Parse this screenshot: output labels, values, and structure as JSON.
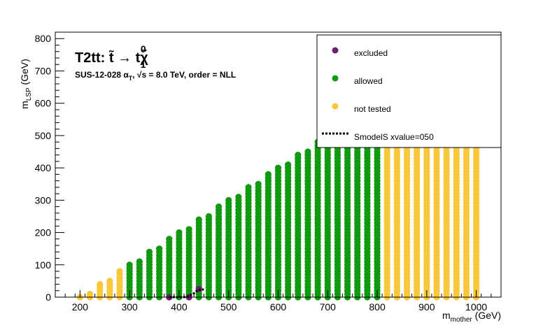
{
  "chart_data": {
    "type": "scatter",
    "title": "T2tt: t̃ → tχ̃",
    "title_superscript": "0",
    "title_subscript": "1",
    "subtitle": "SUS-12-028   α",
    "subtitle_sub": "T",
    "subtitle_rest": ", √s =  8.0 TeV, order =  NLL",
    "xlabel": "m",
    "xlabel_sub": "mother",
    "xlabel_unit": " (GeV)",
    "ylabel": "m",
    "ylabel_sub": "LSP",
    "ylabel_unit": " (GeV)",
    "xlim": [
      150,
      1050
    ],
    "ylim": [
      0,
      820
    ],
    "x_ticks": [
      200,
      300,
      400,
      500,
      600,
      700,
      800,
      900,
      1000
    ],
    "y_ticks": [
      0,
      100,
      200,
      300,
      400,
      500,
      600,
      700,
      800
    ],
    "grid": false,
    "legend_position": "top-right",
    "colors": {
      "excluded": "#6b1f6f",
      "allowed": "#119a11",
      "not_tested": "#f8c83a",
      "contour": "#000000"
    },
    "series": [
      {
        "name": "excluded",
        "color": "#6b1f6f",
        "columns": [
          {
            "x": 380,
            "y": [
              0
            ]
          },
          {
            "x": 420,
            "y": [
              0
            ]
          },
          {
            "x": 440,
            "y": [
              25
            ]
          }
        ]
      },
      {
        "name": "allowed",
        "color": "#119a11",
        "columns": [
          {
            "x": 300,
            "y_min": 0,
            "y_max": 100
          },
          {
            "x": 320,
            "y_min": 0,
            "y_max": 115
          },
          {
            "x": 340,
            "y_min": 0,
            "y_max": 140
          },
          {
            "x": 360,
            "y_min": 0,
            "y_max": 155
          },
          {
            "x": 380,
            "y_min": 0,
            "y_max": 180
          },
          {
            "x": 400,
            "y_min": 0,
            "y_max": 200
          },
          {
            "x": 420,
            "y_min": 0,
            "y_max": 215
          },
          {
            "x": 440,
            "y_min": 0,
            "y_max": 240
          },
          {
            "x": 460,
            "y_min": 0,
            "y_max": 255
          },
          {
            "x": 480,
            "y_min": 0,
            "y_max": 280
          },
          {
            "x": 500,
            "y_min": 0,
            "y_max": 300
          },
          {
            "x": 520,
            "y_min": 0,
            "y_max": 315
          },
          {
            "x": 540,
            "y_min": 0,
            "y_max": 340
          },
          {
            "x": 560,
            "y_min": 0,
            "y_max": 355
          },
          {
            "x": 580,
            "y_min": 0,
            "y_max": 380
          },
          {
            "x": 600,
            "y_min": 0,
            "y_max": 400
          },
          {
            "x": 620,
            "y_min": 0,
            "y_max": 415
          },
          {
            "x": 640,
            "y_min": 0,
            "y_max": 440
          },
          {
            "x": 660,
            "y_min": 0,
            "y_max": 455
          },
          {
            "x": 680,
            "y_min": 0,
            "y_max": 480
          },
          {
            "x": 700,
            "y_min": 0,
            "y_max": 500
          },
          {
            "x": 720,
            "y_min": 0,
            "y_max": 500
          },
          {
            "x": 740,
            "y_min": 0,
            "y_max": 500
          },
          {
            "x": 760,
            "y_min": 0,
            "y_max": 500
          },
          {
            "x": 780,
            "y_min": 0,
            "y_max": 500
          },
          {
            "x": 800,
            "y_min": 0,
            "y_max": 500
          }
        ]
      },
      {
        "name": "not tested",
        "color": "#f8c83a",
        "columns": [
          {
            "x": 200,
            "y_min": 0,
            "y_max": 0
          },
          {
            "x": 220,
            "y_min": 0,
            "y_max": 10
          },
          {
            "x": 240,
            "y_min": 0,
            "y_max": 40
          },
          {
            "x": 260,
            "y_min": 0,
            "y_max": 50
          },
          {
            "x": 280,
            "y_min": 0,
            "y_max": 80
          },
          {
            "x": 820,
            "y_min": 0,
            "y_max": 500
          },
          {
            "x": 840,
            "y_min": 0,
            "y_max": 500
          },
          {
            "x": 860,
            "y_min": 0,
            "y_max": 500
          },
          {
            "x": 880,
            "y_min": 0,
            "y_max": 500
          },
          {
            "x": 900,
            "y_min": 0,
            "y_max": 500
          },
          {
            "x": 920,
            "y_min": 0,
            "y_max": 500
          },
          {
            "x": 940,
            "y_min": 0,
            "y_max": 500
          },
          {
            "x": 960,
            "y_min": 0,
            "y_max": 500
          },
          {
            "x": 980,
            "y_min": 0,
            "y_max": 500
          },
          {
            "x": 1000,
            "y_min": 0,
            "y_max": 500
          }
        ]
      }
    ],
    "contour": {
      "name": "SmodelS xvalue=050",
      "points": [
        [
          380,
          0
        ],
        [
          400,
          0
        ],
        [
          410,
          0
        ],
        [
          420,
          3
        ],
        [
          425,
          8
        ],
        [
          430,
          12
        ],
        [
          438,
          22
        ],
        [
          450,
          24
        ]
      ]
    },
    "legend": [
      {
        "label": "excluded",
        "symbol": "dot",
        "color": "#6b1f6f"
      },
      {
        "label": "allowed",
        "symbol": "dot",
        "color": "#119a11"
      },
      {
        "label": "not tested",
        "symbol": "dot",
        "color": "#f8c83a"
      },
      {
        "label": "SmodelS xvalue=050",
        "symbol": "dashed-line",
        "color": "#000000"
      }
    ]
  }
}
